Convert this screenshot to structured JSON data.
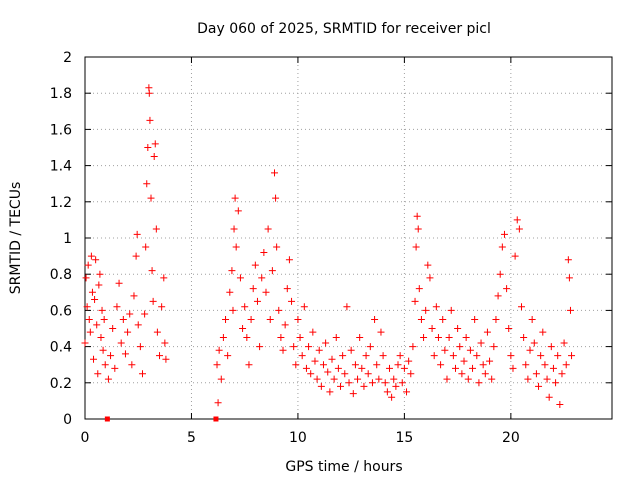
{
  "chart_data": {
    "type": "scatter",
    "title": "Day 060 of 2025, SRMTID for receiver picl",
    "xlabel": "GPS time / hours",
    "ylabel": "SRMTID / TECUs",
    "xlim": [
      0,
      24.75
    ],
    "ylim": [
      0,
      2
    ],
    "xticks": [
      0,
      5,
      10,
      15,
      20
    ],
    "xtick_labels": [
      "0",
      "5",
      "10",
      "15",
      "20"
    ],
    "yticks": [
      0,
      0.2,
      0.4,
      0.6,
      0.8,
      1,
      1.2,
      1.4,
      1.6,
      1.8,
      2
    ],
    "ytick_labels": [
      "0",
      "0.2",
      "0.4",
      "0.6",
      "0.8",
      "1",
      "1.2",
      "1.4",
      "1.6",
      "1.8",
      "2"
    ],
    "grid": true,
    "marker": "+",
    "marker_color": "#ff0000",
    "series": [
      {
        "name": "SRMTID",
        "points": [
          [
            0.0,
            0.42
          ],
          [
            0.05,
            0.78
          ],
          [
            0.1,
            0.62
          ],
          [
            0.15,
            0.85
          ],
          [
            0.2,
            0.55
          ],
          [
            0.25,
            0.48
          ],
          [
            0.3,
            0.9
          ],
          [
            0.35,
            0.7
          ],
          [
            0.4,
            0.33
          ],
          [
            0.45,
            0.66
          ],
          [
            0.5,
            0.88
          ],
          [
            0.55,
            0.52
          ],
          [
            0.6,
            0.25
          ],
          [
            0.65,
            0.74
          ],
          [
            0.7,
            0.8
          ],
          [
            0.75,
            0.45
          ],
          [
            0.8,
            0.6
          ],
          [
            0.85,
            0.38
          ],
          [
            0.9,
            0.55
          ],
          [
            0.95,
            0.3
          ],
          [
            1.1,
            0.22
          ],
          [
            1.2,
            0.35
          ],
          [
            1.3,
            0.5
          ],
          [
            1.4,
            0.28
          ],
          [
            1.5,
            0.62
          ],
          [
            1.6,
            0.75
          ],
          [
            1.7,
            0.42
          ],
          [
            1.8,
            0.55
          ],
          [
            1.9,
            0.36
          ],
          [
            2.0,
            0.48
          ],
          [
            2.1,
            0.58
          ],
          [
            2.2,
            0.3
          ],
          [
            2.3,
            0.68
          ],
          [
            2.4,
            0.9
          ],
          [
            2.45,
            1.02
          ],
          [
            2.5,
            0.52
          ],
          [
            2.6,
            0.4
          ],
          [
            2.7,
            0.25
          ],
          [
            2.8,
            0.58
          ],
          [
            2.85,
            0.95
          ],
          [
            2.9,
            1.3
          ],
          [
            2.95,
            1.5
          ],
          [
            3.0,
            1.83
          ],
          [
            3.02,
            1.8
          ],
          [
            3.05,
            1.65
          ],
          [
            3.1,
            1.22
          ],
          [
            3.15,
            0.82
          ],
          [
            3.2,
            0.65
          ],
          [
            3.25,
            1.45
          ],
          [
            3.3,
            1.52
          ],
          [
            3.35,
            1.05
          ],
          [
            3.4,
            0.48
          ],
          [
            3.5,
            0.35
          ],
          [
            3.6,
            0.62
          ],
          [
            3.7,
            0.78
          ],
          [
            3.75,
            0.42
          ],
          [
            3.8,
            0.33
          ],
          [
            6.2,
            0.3
          ],
          [
            6.25,
            0.09
          ],
          [
            6.3,
            0.38
          ],
          [
            6.4,
            0.22
          ],
          [
            6.5,
            0.45
          ],
          [
            6.6,
            0.55
          ],
          [
            6.7,
            0.35
          ],
          [
            6.8,
            0.7
          ],
          [
            6.9,
            0.82
          ],
          [
            6.95,
            0.6
          ],
          [
            7.0,
            1.05
          ],
          [
            7.05,
            1.22
          ],
          [
            7.1,
            0.95
          ],
          [
            7.2,
            1.15
          ],
          [
            7.3,
            0.78
          ],
          [
            7.4,
            0.5
          ],
          [
            7.5,
            0.62
          ],
          [
            7.6,
            0.45
          ],
          [
            7.7,
            0.3
          ],
          [
            7.8,
            0.55
          ],
          [
            7.9,
            0.72
          ],
          [
            8.0,
            0.85
          ],
          [
            8.1,
            0.65
          ],
          [
            8.2,
            0.4
          ],
          [
            8.3,
            0.78
          ],
          [
            8.4,
            0.92
          ],
          [
            8.5,
            0.7
          ],
          [
            8.6,
            1.05
          ],
          [
            8.7,
            0.55
          ],
          [
            8.8,
            0.82
          ],
          [
            8.9,
            1.36
          ],
          [
            8.95,
            1.22
          ],
          [
            9.0,
            0.95
          ],
          [
            9.1,
            0.6
          ],
          [
            9.2,
            0.45
          ],
          [
            9.3,
            0.38
          ],
          [
            9.4,
            0.52
          ],
          [
            9.5,
            0.72
          ],
          [
            9.6,
            0.88
          ],
          [
            9.7,
            0.65
          ],
          [
            9.8,
            0.4
          ],
          [
            9.9,
            0.3
          ],
          [
            10.0,
            0.55
          ],
          [
            10.1,
            0.45
          ],
          [
            10.2,
            0.35
          ],
          [
            10.3,
            0.62
          ],
          [
            10.4,
            0.28
          ],
          [
            10.5,
            0.4
          ],
          [
            10.6,
            0.25
          ],
          [
            10.7,
            0.48
          ],
          [
            10.8,
            0.32
          ],
          [
            10.9,
            0.22
          ],
          [
            11.0,
            0.38
          ],
          [
            11.1,
            0.18
          ],
          [
            11.2,
            0.3
          ],
          [
            11.3,
            0.42
          ],
          [
            11.4,
            0.26
          ],
          [
            11.5,
            0.15
          ],
          [
            11.6,
            0.33
          ],
          [
            11.7,
            0.22
          ],
          [
            11.8,
            0.45
          ],
          [
            11.9,
            0.28
          ],
          [
            12.0,
            0.18
          ],
          [
            12.1,
            0.35
          ],
          [
            12.2,
            0.25
          ],
          [
            12.3,
            0.62
          ],
          [
            12.4,
            0.2
          ],
          [
            12.5,
            0.38
          ],
          [
            12.6,
            0.14
          ],
          [
            12.7,
            0.3
          ],
          [
            12.8,
            0.22
          ],
          [
            12.9,
            0.45
          ],
          [
            13.0,
            0.28
          ],
          [
            13.1,
            0.18
          ],
          [
            13.2,
            0.35
          ],
          [
            13.3,
            0.25
          ],
          [
            13.4,
            0.4
          ],
          [
            13.5,
            0.2
          ],
          [
            13.6,
            0.55
          ],
          [
            13.7,
            0.3
          ],
          [
            13.8,
            0.22
          ],
          [
            13.9,
            0.48
          ],
          [
            14.0,
            0.35
          ],
          [
            14.1,
            0.2
          ],
          [
            14.2,
            0.15
          ],
          [
            14.3,
            0.28
          ],
          [
            14.4,
            0.12
          ],
          [
            14.5,
            0.22
          ],
          [
            14.6,
            0.18
          ],
          [
            14.7,
            0.3
          ],
          [
            14.8,
            0.35
          ],
          [
            14.9,
            0.2
          ],
          [
            15.0,
            0.28
          ],
          [
            15.1,
            0.15
          ],
          [
            15.2,
            0.32
          ],
          [
            15.3,
            0.25
          ],
          [
            15.4,
            0.4
          ],
          [
            15.5,
            0.65
          ],
          [
            15.55,
            0.95
          ],
          [
            15.6,
            1.12
          ],
          [
            15.65,
            1.05
          ],
          [
            15.7,
            0.72
          ],
          [
            15.8,
            0.55
          ],
          [
            15.9,
            0.45
          ],
          [
            16.0,
            0.6
          ],
          [
            16.1,
            0.85
          ],
          [
            16.2,
            0.78
          ],
          [
            16.3,
            0.5
          ],
          [
            16.4,
            0.35
          ],
          [
            16.5,
            0.62
          ],
          [
            16.6,
            0.45
          ],
          [
            16.7,
            0.3
          ],
          [
            16.8,
            0.55
          ],
          [
            16.9,
            0.38
          ],
          [
            17.0,
            0.22
          ],
          [
            17.1,
            0.45
          ],
          [
            17.2,
            0.6
          ],
          [
            17.3,
            0.35
          ],
          [
            17.4,
            0.28
          ],
          [
            17.5,
            0.5
          ],
          [
            17.6,
            0.4
          ],
          [
            17.7,
            0.25
          ],
          [
            17.8,
            0.32
          ],
          [
            17.9,
            0.45
          ],
          [
            18.0,
            0.22
          ],
          [
            18.1,
            0.38
          ],
          [
            18.2,
            0.28
          ],
          [
            18.3,
            0.55
          ],
          [
            18.4,
            0.35
          ],
          [
            18.5,
            0.2
          ],
          [
            18.6,
            0.42
          ],
          [
            18.7,
            0.3
          ],
          [
            18.8,
            0.25
          ],
          [
            18.9,
            0.48
          ],
          [
            19.0,
            0.32
          ],
          [
            19.1,
            0.22
          ],
          [
            19.2,
            0.4
          ],
          [
            19.3,
            0.55
          ],
          [
            19.4,
            0.68
          ],
          [
            19.5,
            0.8
          ],
          [
            19.6,
            0.95
          ],
          [
            19.7,
            1.02
          ],
          [
            19.8,
            0.72
          ],
          [
            19.9,
            0.5
          ],
          [
            20.0,
            0.35
          ],
          [
            20.1,
            0.28
          ],
          [
            20.2,
            0.9
          ],
          [
            20.3,
            1.1
          ],
          [
            20.4,
            1.05
          ],
          [
            20.5,
            0.62
          ],
          [
            20.6,
            0.45
          ],
          [
            20.7,
            0.3
          ],
          [
            20.8,
            0.22
          ],
          [
            20.9,
            0.38
          ],
          [
            21.0,
            0.55
          ],
          [
            21.1,
            0.42
          ],
          [
            21.2,
            0.25
          ],
          [
            21.3,
            0.18
          ],
          [
            21.4,
            0.35
          ],
          [
            21.5,
            0.48
          ],
          [
            21.6,
            0.3
          ],
          [
            21.7,
            0.22
          ],
          [
            21.8,
            0.12
          ],
          [
            21.9,
            0.4
          ],
          [
            22.0,
            0.28
          ],
          [
            22.1,
            0.2
          ],
          [
            22.2,
            0.35
          ],
          [
            22.3,
            0.08
          ],
          [
            22.4,
            0.25
          ],
          [
            22.5,
            0.42
          ],
          [
            22.6,
            0.3
          ],
          [
            22.7,
            0.88
          ],
          [
            22.75,
            0.78
          ],
          [
            22.8,
            0.6
          ],
          [
            22.85,
            0.35
          ]
        ]
      }
    ],
    "zero_markers": [
      1.05,
      6.15
    ]
  }
}
